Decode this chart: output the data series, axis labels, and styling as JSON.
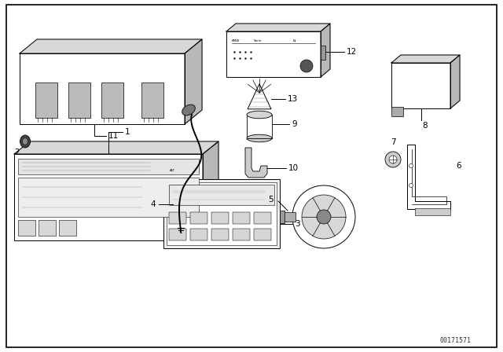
{
  "bg_color": "#ffffff",
  "line_color": "#000000",
  "part_number": "00171571",
  "lw": 0.7,
  "border": [
    0.08,
    0.06,
    6.24,
    4.36
  ]
}
